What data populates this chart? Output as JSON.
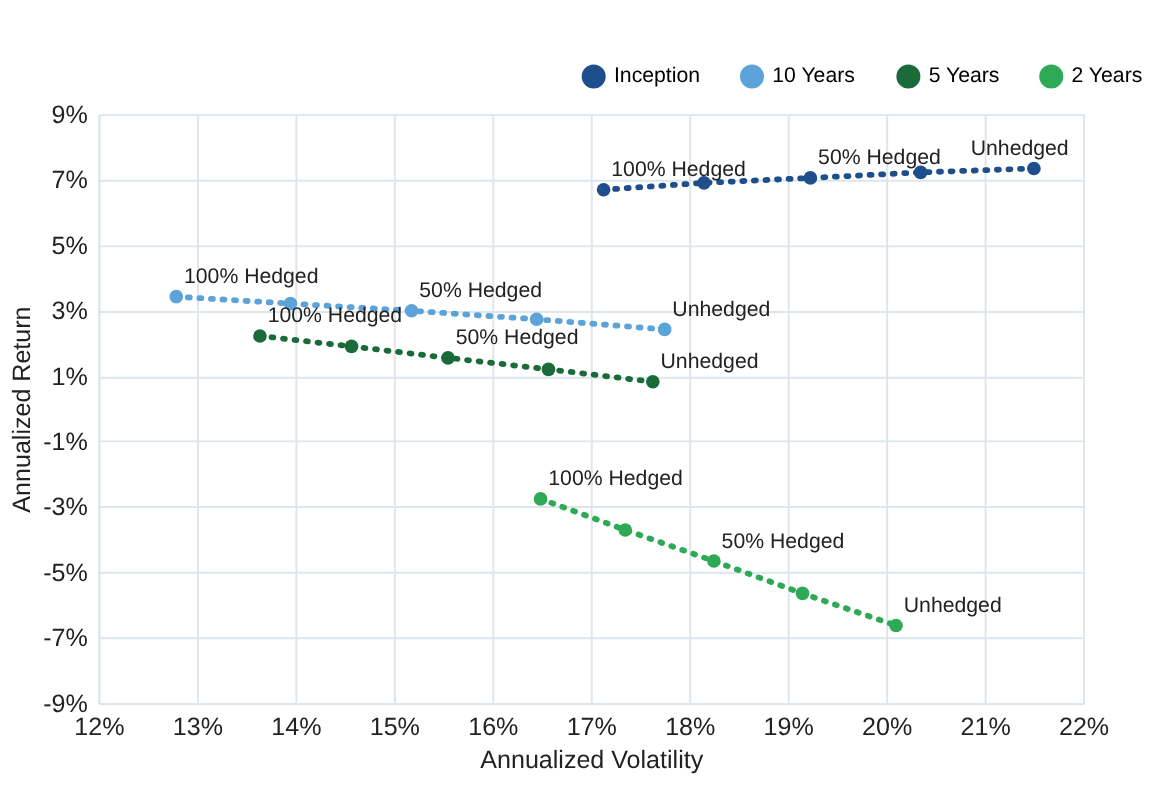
{
  "chart_data": {
    "type": "line",
    "xlabel": "Annualized Volatility",
    "ylabel": "Annualized Return",
    "series": [
      {
        "name": "Inception",
        "color": "#1f4e8c",
        "x": [
          17.13,
          18.15,
          19.23,
          20.35,
          21.5
        ],
        "values": [
          6.69,
          6.9,
          7.05,
          7.22,
          7.34
        ]
      },
      {
        "name": "10 Years",
        "color": "#5ba3d9",
        "x": [
          12.79,
          13.95,
          15.18,
          16.45,
          17.75
        ],
        "values": [
          3.42,
          3.21,
          2.99,
          2.73,
          2.42
        ]
      },
      {
        "name": "5 Years",
        "color": "#1b6b3a",
        "x": [
          13.64,
          14.57,
          15.55,
          16.57,
          17.63
        ],
        "values": [
          2.22,
          1.9,
          1.55,
          1.2,
          0.82
        ]
      },
      {
        "name": "2 Years",
        "color": "#2eaa57",
        "x": [
          16.49,
          17.35,
          18.25,
          19.15,
          20.1
        ],
        "values": [
          -2.76,
          -3.71,
          -4.66,
          -5.65,
          -6.63
        ]
      }
    ],
    "annotations": [
      {
        "text": "100% Hedged",
        "x": 17.13,
        "y": 6.69
      },
      {
        "text": "50% Hedged",
        "x": 19.23,
        "y": 7.05
      },
      {
        "text": "Unhedged",
        "x": 21.5,
        "y": 7.34
      },
      {
        "text": "100% Hedged",
        "x": 12.79,
        "y": 3.42
      },
      {
        "text": "50% Hedged",
        "x": 15.18,
        "y": 2.99
      },
      {
        "text": "Unhedged",
        "x": 17.75,
        "y": 2.42
      },
      {
        "text": "100% Hedged",
        "x": 13.64,
        "y": 2.22
      },
      {
        "text": "50% Hedged",
        "x": 15.55,
        "y": 1.55
      },
      {
        "text": "Unhedged",
        "x": 17.63,
        "y": 0.82
      },
      {
        "text": "100% Hedged",
        "x": 16.49,
        "y": -2.76
      },
      {
        "text": "50% Hedged",
        "x": 18.25,
        "y": -4.66
      },
      {
        "text": "Unhedged",
        "x": 20.1,
        "y": -6.63
      }
    ],
    "xlim": [
      12,
      22
    ],
    "xticks": [
      {
        "value": 12,
        "label": "12%"
      },
      {
        "value": 13,
        "label": "13%"
      },
      {
        "value": 14,
        "label": "14%"
      },
      {
        "value": 15,
        "label": "15%"
      },
      {
        "value": 16,
        "label": "16%"
      },
      {
        "value": 17,
        "label": "17%"
      },
      {
        "value": 18,
        "label": "18%"
      },
      {
        "value": 19,
        "label": "19%"
      },
      {
        "value": 20,
        "label": "20%"
      },
      {
        "value": 21,
        "label": "21%"
      },
      {
        "value": 22,
        "label": "22%"
      }
    ],
    "ylim": [
      -9,
      9
    ],
    "yticks": [
      {
        "value": -9,
        "label": "-9%"
      },
      {
        "value": -7,
        "label": "-7%"
      },
      {
        "value": -5,
        "label": "-5%"
      },
      {
        "value": -3,
        "label": "-3%"
      },
      {
        "value": -1,
        "label": "-1%"
      },
      {
        "value": 1,
        "label": "1%"
      },
      {
        "value": 3,
        "label": "3%"
      },
      {
        "value": 5,
        "label": "5%"
      },
      {
        "value": 7,
        "label": "7%"
      },
      {
        "value": 9,
        "label": "9%"
      }
    ],
    "grid": true,
    "legend": "top right",
    "marker": "circle",
    "line_style": "dotted"
  }
}
